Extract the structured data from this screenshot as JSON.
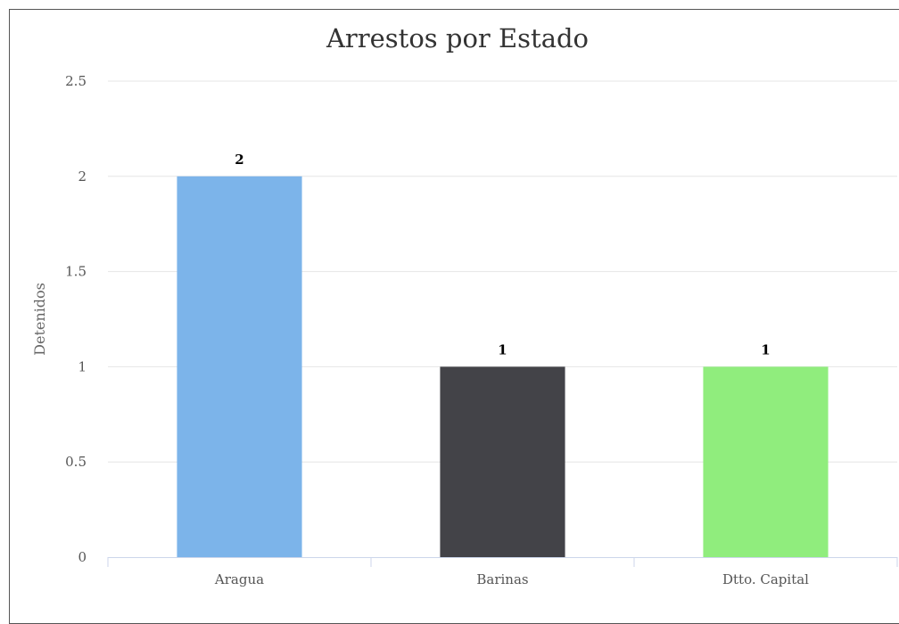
{
  "chart_data": {
    "type": "bar",
    "title": "Arrestos por Estado",
    "xlabel": "",
    "ylabel": "Detenidos",
    "categories": [
      "Aragua",
      "Barinas",
      "Dtto. Capital"
    ],
    "values": [
      2,
      1,
      1
    ],
    "data_labels": [
      "2",
      "1",
      "1"
    ],
    "colors": [
      "#7cb4ea",
      "#434348",
      "#90ed7d"
    ],
    "ylim": [
      0,
      2.5
    ],
    "yticks": [
      0,
      0.5,
      1,
      1.5,
      2,
      2.5
    ],
    "ytick_labels": [
      "0",
      "0.5",
      "1",
      "1.5",
      "2",
      "2.5"
    ],
    "grid": true,
    "legend": "none"
  }
}
